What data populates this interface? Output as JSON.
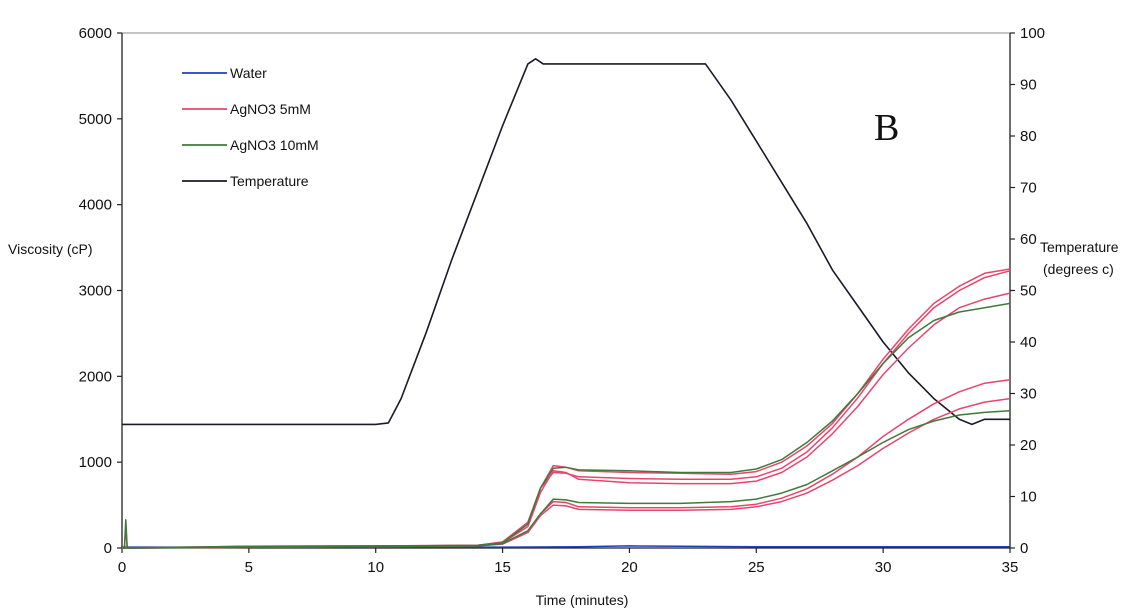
{
  "chart_data": {
    "type": "line",
    "xlabel": "Time (minutes)",
    "ylabel": "Viscosity (cP)",
    "y2label_line1": "Temperature",
    "y2label_line2": "(degrees c)",
    "panel_label": "B",
    "xlim": [
      0,
      35
    ],
    "ylim": [
      0,
      6000
    ],
    "y2lim": [
      0,
      100
    ],
    "x_ticks": [
      "0",
      "5",
      "10",
      "15",
      "20",
      "25",
      "30",
      "35"
    ],
    "y_ticks": [
      "0",
      "1000",
      "2000",
      "3000",
      "4000",
      "5000",
      "6000"
    ],
    "y2_ticks": [
      "0",
      "10",
      "20",
      "30",
      "40",
      "50",
      "60",
      "70",
      "80",
      "90",
      "100"
    ],
    "legend_position": "top-left",
    "grid": false,
    "legend": [
      {
        "label": "Water",
        "color": "#1f3fbf"
      },
      {
        "label": "AgNO3 5mM",
        "color": "#e8456e"
      },
      {
        "label": "AgNO3 10mM",
        "color": "#3f7a3a"
      },
      {
        "label": "Temperature",
        "color": "#1a1a2a"
      }
    ],
    "series": [
      {
        "legend_index": 0,
        "axis": "left",
        "color": "#1f3fbf",
        "x": [
          0,
          5,
          10,
          15,
          18,
          20,
          22,
          25,
          30,
          35
        ],
        "y": [
          10,
          10,
          10,
          10,
          15,
          25,
          20,
          15,
          15,
          15
        ]
      },
      {
        "legend_index": 3,
        "axis": "right",
        "color": "#1a1a2a",
        "x": [
          0,
          10,
          10.5,
          11,
          12,
          13,
          14,
          15,
          16,
          16.3,
          16.6,
          17,
          20,
          23,
          24,
          25,
          26,
          27,
          28,
          29,
          30,
          31,
          32,
          33,
          33.5,
          34,
          35
        ],
        "y": [
          24,
          24,
          24.3,
          29,
          42,
          56,
          69,
          82,
          94,
          95,
          94,
          94,
          94,
          94,
          87,
          79,
          71,
          63,
          54,
          47,
          40,
          34,
          29,
          25,
          24,
          25,
          25
        ]
      },
      {
        "legend_index": 1,
        "axis": "left",
        "color": "#e8456e",
        "x": [
          0,
          0.1,
          0.15,
          0.2,
          0.3,
          5,
          10,
          14,
          15,
          16,
          16.5,
          17,
          17.5,
          18,
          20,
          22,
          24,
          25,
          26,
          27,
          28,
          29,
          30,
          31,
          32,
          33,
          34,
          35
        ],
        "y": [
          0,
          10,
          250,
          20,
          0,
          20,
          25,
          30,
          70,
          300,
          700,
          880,
          870,
          830,
          810,
          800,
          800,
          830,
          930,
          1120,
          1400,
          1750,
          2150,
          2500,
          2800,
          3000,
          3150,
          3230
        ]
      },
      {
        "legend_index": 1,
        "axis": "left",
        "color": "#e8456e",
        "x": [
          0,
          14,
          15,
          16,
          16.5,
          17,
          17.5,
          18,
          20,
          22,
          24,
          25,
          26,
          27,
          28,
          29,
          30,
          31,
          32,
          33,
          34,
          35
        ],
        "y": [
          0,
          30,
          70,
          300,
          700,
          960,
          940,
          900,
          880,
          870,
          860,
          890,
          1000,
          1190,
          1450,
          1800,
          2200,
          2550,
          2850,
          3050,
          3200,
          3250
        ]
      },
      {
        "legend_index": 1,
        "axis": "left",
        "color": "#e8456e",
        "x": [
          0,
          14,
          15,
          16,
          16.5,
          17,
          17.5,
          18,
          20,
          22,
          24,
          25,
          26,
          27,
          28,
          29,
          30,
          31,
          32,
          33,
          34,
          35
        ],
        "y": [
          0,
          30,
          60,
          250,
          650,
          900,
          880,
          800,
          760,
          750,
          750,
          780,
          880,
          1060,
          1330,
          1650,
          2020,
          2330,
          2600,
          2800,
          2900,
          2970
        ]
      },
      {
        "legend_index": 1,
        "axis": "left",
        "color": "#e8456e",
        "x": [
          0,
          14,
          15,
          16,
          16.5,
          17,
          17.5,
          18,
          20,
          22,
          24,
          25,
          26,
          27,
          28,
          29,
          30,
          31,
          32,
          33,
          34,
          35
        ],
        "y": [
          0,
          25,
          50,
          200,
          400,
          540,
          530,
          480,
          470,
          470,
          480,
          510,
          580,
          690,
          860,
          1060,
          1300,
          1500,
          1680,
          1820,
          1920,
          1960
        ]
      },
      {
        "legend_index": 1,
        "axis": "left",
        "color": "#e8456e",
        "x": [
          0,
          14,
          15,
          16,
          16.5,
          17,
          17.5,
          18,
          20,
          22,
          24,
          25,
          26,
          27,
          28,
          29,
          30,
          31,
          32,
          33,
          34,
          35
        ],
        "y": [
          0,
          25,
          45,
          180,
          380,
          500,
          490,
          450,
          440,
          440,
          450,
          480,
          540,
          640,
          790,
          960,
          1160,
          1340,
          1500,
          1620,
          1700,
          1740
        ]
      },
      {
        "legend_index": 2,
        "axis": "left",
        "color": "#3f7a3a",
        "x": [
          0,
          0.1,
          0.15,
          0.2,
          0.3,
          5,
          10,
          14,
          15,
          16,
          16.5,
          17,
          17.5,
          18,
          20,
          22,
          24,
          25,
          26,
          27,
          28,
          29,
          30,
          31,
          32,
          33,
          34,
          35
        ],
        "y": [
          0,
          15,
          330,
          20,
          0,
          20,
          25,
          30,
          60,
          280,
          700,
          930,
          940,
          910,
          900,
          880,
          880,
          920,
          1030,
          1230,
          1480,
          1800,
          2150,
          2450,
          2650,
          2750,
          2800,
          2850
        ]
      },
      {
        "legend_index": 2,
        "axis": "left",
        "color": "#3f7a3a",
        "x": [
          0,
          14,
          15,
          16,
          16.5,
          17,
          17.5,
          18,
          20,
          22,
          24,
          25,
          26,
          27,
          28,
          29,
          30,
          31,
          32,
          33,
          34,
          35
        ],
        "y": [
          0,
          25,
          50,
          200,
          400,
          570,
          560,
          530,
          520,
          520,
          540,
          570,
          640,
          740,
          900,
          1060,
          1230,
          1380,
          1480,
          1550,
          1580,
          1600
        ]
      }
    ]
  }
}
